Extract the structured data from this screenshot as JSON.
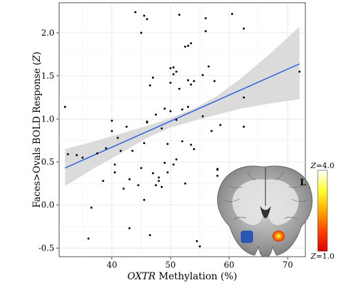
{
  "chart_data": {
    "type": "scatter",
    "xlabel_italic": "OXTR",
    "xlabel_rest": " Methylation (%)",
    "ylabel_pre": "Faces>Ovals BOLD Response (",
    "ylabel_italic": "Z",
    "ylabel_post": ")",
    "xlim": [
      31,
      73
    ],
    "ylim": [
      -0.6,
      2.35
    ],
    "xticks": [
      40,
      50,
      60,
      70
    ],
    "xtick_labels": [
      "40",
      "50",
      "60",
      "70"
    ],
    "yticks": [
      -0.5,
      0.0,
      0.5,
      1.0,
      1.5,
      2.0
    ],
    "ytick_labels": [
      "-0.5",
      "0.0",
      "0.5",
      "1.0",
      "1.5",
      "2.0"
    ],
    "grid": true,
    "fit_color": "#3366dd",
    "band_color": "#d9d9d9",
    "fit_line": {
      "x": [
        32,
        72
      ],
      "y": [
        0.43,
        1.64
      ]
    },
    "band_lower": [
      [
        32,
        0.22
      ],
      [
        37,
        0.43
      ],
      [
        42,
        0.62
      ],
      [
        46,
        0.78
      ],
      [
        50,
        0.9
      ],
      [
        54,
        0.98
      ],
      [
        58,
        1.05
      ],
      [
        62,
        1.12
      ],
      [
        67,
        1.18
      ],
      [
        72,
        1.23
      ]
    ],
    "band_upper": [
      [
        32,
        0.65
      ],
      [
        37,
        0.74
      ],
      [
        42,
        0.84
      ],
      [
        46,
        0.92
      ],
      [
        50,
        1.01
      ],
      [
        54,
        1.12
      ],
      [
        58,
        1.27
      ],
      [
        62,
        1.47
      ],
      [
        67,
        1.76
      ],
      [
        72,
        2.07
      ]
    ],
    "points": [
      [
        32,
        1.14
      ],
      [
        32.5,
        0.59
      ],
      [
        34,
        0.58
      ],
      [
        35,
        0.55
      ],
      [
        36,
        -0.39
      ],
      [
        36.5,
        -0.03
      ],
      [
        37.5,
        0.6
      ],
      [
        38.5,
        0.28
      ],
      [
        39,
        0.66
      ],
      [
        40,
        0.86
      ],
      [
        40,
        0.98
      ],
      [
        40.5,
        0.47
      ],
      [
        40.5,
        0.38
      ],
      [
        41,
        0.78
      ],
      [
        41.5,
        0.63
      ],
      [
        42,
        0.19
      ],
      [
        42.5,
        0.91
      ],
      [
        43,
        0.3
      ],
      [
        43,
        -0.27
      ],
      [
        43.5,
        0.63
      ],
      [
        44,
        2.24
      ],
      [
        44.5,
        0.23
      ],
      [
        45,
        0.43
      ],
      [
        45,
        2.0
      ],
      [
        45.5,
        2.2
      ],
      [
        45.5,
        0.72
      ],
      [
        45.5,
        0.06
      ],
      [
        46,
        0.97
      ],
      [
        46,
        0.96
      ],
      [
        46,
        2.16
      ],
      [
        46.5,
        1.39
      ],
      [
        46.5,
        -0.35
      ],
      [
        47,
        1.48
      ],
      [
        47,
        0.37
      ],
      [
        47.5,
        1.05
      ],
      [
        47.5,
        0.23
      ],
      [
        48,
        0.32
      ],
      [
        48,
        0.28
      ],
      [
        48.5,
        0.21
      ],
      [
        48.5,
        0.89
      ],
      [
        49,
        1.12
      ],
      [
        49,
        0.49
      ],
      [
        49.5,
        0.71
      ],
      [
        49.5,
        0.38
      ],
      [
        50,
        1.09
      ],
      [
        50,
        1.42
      ],
      [
        50,
        1.59
      ],
      [
        50.5,
        1.6
      ],
      [
        50.5,
        1.52
      ],
      [
        50.5,
        0.47
      ],
      [
        51,
        1.55
      ],
      [
        51,
        0.99
      ],
      [
        51,
        0.53
      ],
      [
        51.5,
        2.21
      ],
      [
        51.5,
        1.35
      ],
      [
        52,
        1.11
      ],
      [
        52,
        0.74
      ],
      [
        52.5,
        0.25
      ],
      [
        52.5,
        1.84
      ],
      [
        53,
        1.85
      ],
      [
        53,
        1.45
      ],
      [
        53,
        1.14
      ],
      [
        53.5,
        1.88
      ],
      [
        53.5,
        0.7
      ],
      [
        53.5,
        1.4
      ],
      [
        54,
        1.44
      ],
      [
        54,
        0.65
      ],
      [
        54.5,
        -0.42
      ],
      [
        55,
        -0.48
      ],
      [
        55.5,
        1.51
      ],
      [
        55.5,
        1.03
      ],
      [
        56,
        2.17
      ],
      [
        56,
        2.02
      ],
      [
        56.5,
        1.61
      ],
      [
        57,
        0.86
      ],
      [
        57.5,
        1.44
      ],
      [
        58,
        0.42
      ],
      [
        58,
        0.41
      ],
      [
        58,
        0.34
      ],
      [
        58.5,
        0.93
      ],
      [
        60.5,
        2.22
      ],
      [
        62.5,
        2.05
      ],
      [
        62.5,
        1.25
      ],
      [
        62.5,
        0.91
      ],
      [
        72,
        1.55
      ]
    ],
    "colorbar": {
      "top_label_italic": "Z",
      "top_label_rest": "=4.0",
      "bottom_label_italic": "Z",
      "bottom_label_rest": "=1.0",
      "colors": [
        "#ffffff",
        "#ffff33",
        "#ffaa00",
        "#ff4400",
        "#dd0000"
      ]
    }
  },
  "brain_inset": {
    "orientation_label": "L",
    "left_blob_color": "#2a57b3",
    "right_blob_colors": [
      "#ffff66",
      "#ff9900",
      "#e03000"
    ]
  }
}
